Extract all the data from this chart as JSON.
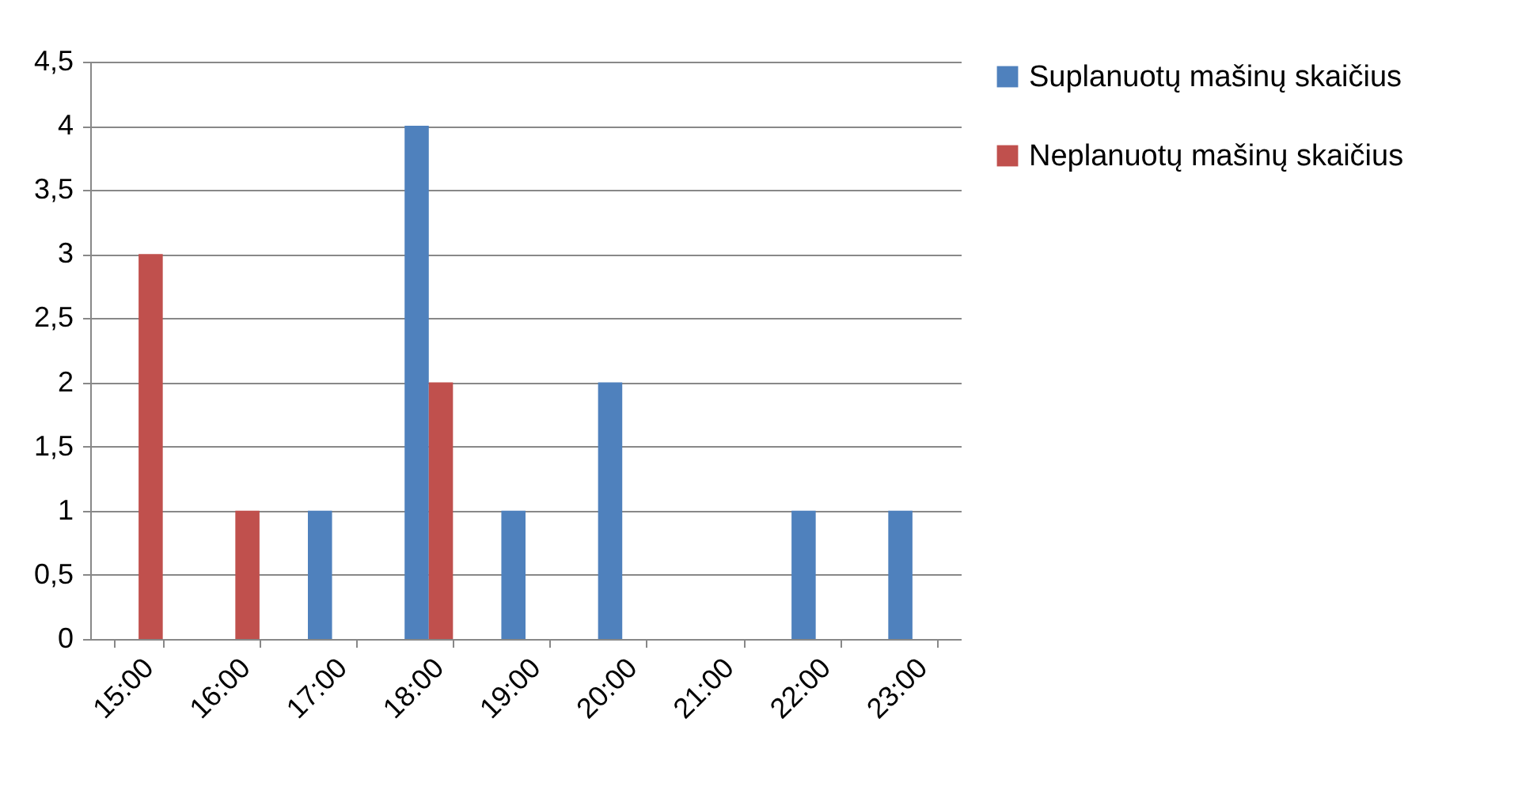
{
  "chart_data": {
    "type": "bar",
    "categories": [
      "15:00",
      "16:00",
      "17:00",
      "18:00",
      "19:00",
      "20:00",
      "21:00",
      "22:00",
      "23:00"
    ],
    "series": [
      {
        "name": "Suplanuotų mašinų skaičius",
        "color": "#4f81bd",
        "values": [
          0,
          0,
          1,
          4,
          1,
          2,
          0,
          1,
          1
        ]
      },
      {
        "name": "Neplanuotų mašinų skaičius",
        "color": "#c0504d",
        "values": [
          3,
          1,
          0,
          2,
          0,
          0,
          0,
          0,
          0
        ]
      }
    ],
    "ylim": [
      0,
      4.5
    ],
    "yticks": [
      0,
      {
        "value": 0.5,
        "label": "0,5"
      },
      1,
      {
        "value": 1.5,
        "label": "1,5"
      },
      2,
      {
        "value": 2.5,
        "label": "2,5"
      },
      3,
      {
        "value": 3.5,
        "label": "3,5"
      },
      4,
      {
        "value": 4.5,
        "label": "4,5"
      }
    ],
    "grid": "y",
    "legend": "right"
  }
}
